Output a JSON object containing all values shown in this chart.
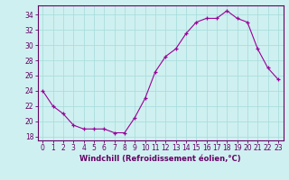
{
  "x": [
    0,
    1,
    2,
    3,
    4,
    5,
    6,
    7,
    8,
    9,
    10,
    11,
    12,
    13,
    14,
    15,
    16,
    17,
    18,
    19,
    20,
    21,
    22,
    23
  ],
  "y": [
    24,
    22,
    21,
    19.5,
    19,
    19,
    19,
    18.5,
    18.5,
    20.5,
    23,
    26.5,
    28.5,
    29.5,
    31.5,
    33,
    33.5,
    33.5,
    34.5,
    33.5,
    33,
    29.5,
    27,
    25.5
  ],
  "xlabel": "Windchill (Refroidissement éolien,°C)",
  "ylim": [
    17.5,
    35.2
  ],
  "xlim": [
    -0.5,
    23.5
  ],
  "yticks": [
    18,
    20,
    22,
    24,
    26,
    28,
    30,
    32,
    34
  ],
  "xticks": [
    0,
    1,
    2,
    3,
    4,
    5,
    6,
    7,
    8,
    9,
    10,
    11,
    12,
    13,
    14,
    15,
    16,
    17,
    18,
    19,
    20,
    21,
    22,
    23
  ],
  "line_color": "#990099",
  "marker_color": "#990099",
  "bg_color": "#cff0f0",
  "grid_color": "#aadddd",
  "axis_color": "#660066",
  "label_color": "#660066",
  "tick_label_size": 5.5,
  "xlabel_size": 6.0
}
